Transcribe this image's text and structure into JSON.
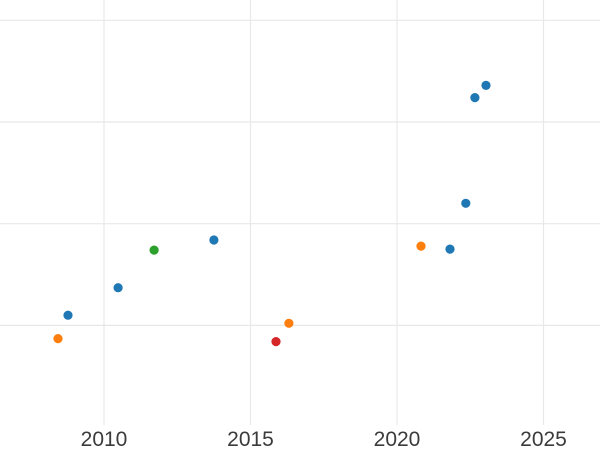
{
  "chart": {
    "background_color": "#ffffff",
    "grid_color": "#e8e8e8",
    "tick_label_color": "#3b3b3b",
    "tick_label_font_size_px": 21
  },
  "chart_data": {
    "type": "scatter",
    "title": "",
    "xlabel": "",
    "ylabel": "",
    "grid": true,
    "legend": false,
    "x_tick_labels": [
      "2010",
      "2015",
      "2020",
      "2025"
    ],
    "x_ticks": [
      2010,
      2015,
      2020,
      2025
    ],
    "y_tick_labels": [],
    "y_gridline_values": [
      0,
      1,
      2,
      3
    ],
    "x_range": [
      2006.45,
      2026.93
    ],
    "y_range": [
      -0.98,
      3.2
    ],
    "marker_radius_px": 4.6,
    "series": [
      {
        "name": "blue-series",
        "color": "#1f77b4",
        "points": [
          {
            "x": 2008.77,
            "y": 0.1
          },
          {
            "x": 2010.48,
            "y": 0.37
          },
          {
            "x": 2013.75,
            "y": 0.84
          },
          {
            "x": 2021.81,
            "y": 0.75
          },
          {
            "x": 2022.35,
            "y": 1.2
          },
          {
            "x": 2022.66,
            "y": 2.24
          },
          {
            "x": 2023.04,
            "y": 2.36
          }
        ]
      },
      {
        "name": "orange-series",
        "color": "#ff7f0e",
        "points": [
          {
            "x": 2008.43,
            "y": -0.13
          },
          {
            "x": 2016.31,
            "y": 0.02
          },
          {
            "x": 2020.82,
            "y": 0.78
          }
        ]
      },
      {
        "name": "green-series",
        "color": "#2ca02c",
        "points": [
          {
            "x": 2011.71,
            "y": 0.74
          }
        ]
      },
      {
        "name": "red-series",
        "color": "#d62728",
        "points": [
          {
            "x": 2015.87,
            "y": -0.16
          }
        ]
      }
    ]
  }
}
